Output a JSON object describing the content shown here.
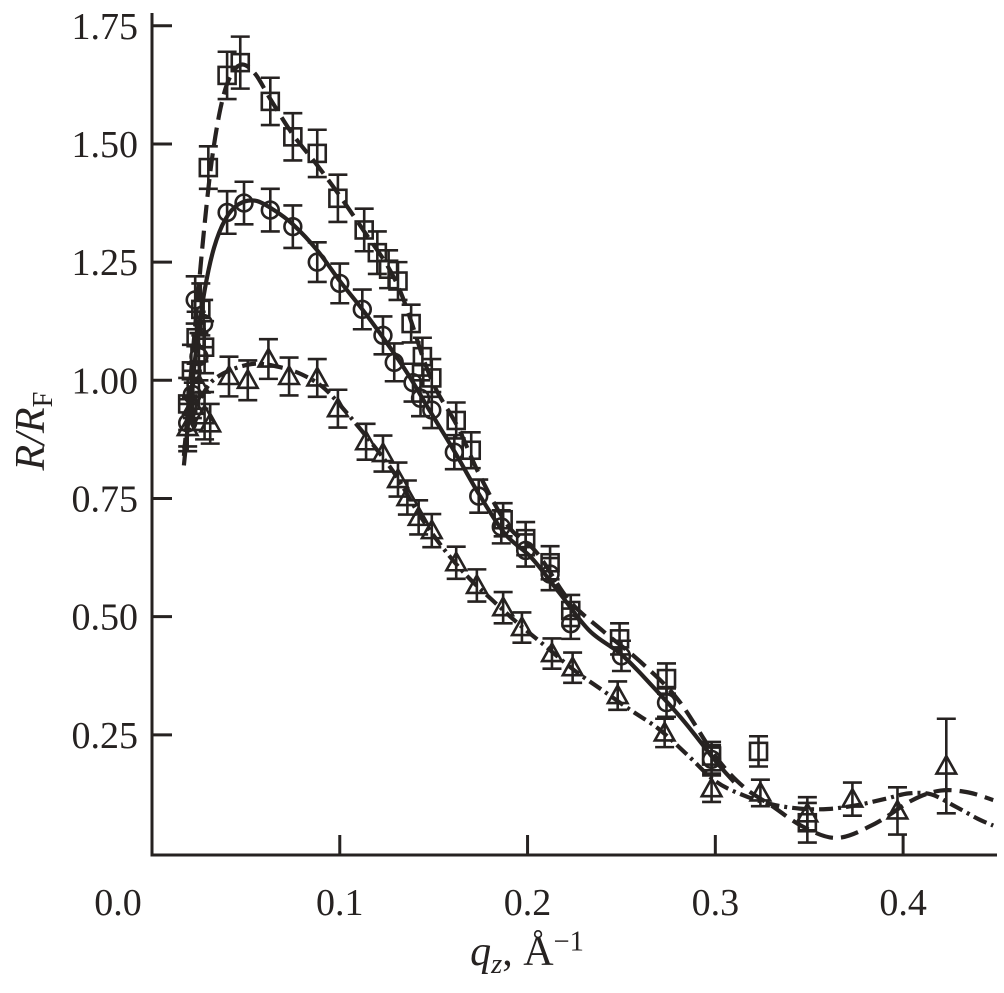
{
  "figure": {
    "description": "X-ray reflectivity curves normalized to Fresnel reflectivity, three data sets with error bars and model fit curves",
    "background": "#ffffff"
  },
  "chart_data": {
    "type": "scatter",
    "title": "",
    "grid": false,
    "legend": "none",
    "colors": {
      "ink": "#262221",
      "background": "#ffffff"
    },
    "x_axis": {
      "label_text": "qz, Å−1",
      "label_parts": {
        "var": "q",
        "sub": "z",
        "mid": ", Å",
        "sup": "−1"
      },
      "min": 0,
      "max": 0.45,
      "ticks": [
        {
          "value": 0.0,
          "label": "0.0",
          "tick": false,
          "label_x": 118
        },
        {
          "value": 0.1,
          "label": "0.1",
          "tick": true
        },
        {
          "value": 0.2,
          "label": "0.2",
          "tick": true
        },
        {
          "value": 0.3,
          "label": "0.3",
          "tick": true
        },
        {
          "value": 0.4,
          "label": "0.4",
          "tick": true
        }
      ]
    },
    "y_axis": {
      "label_text": "R/RF",
      "label_parts": {
        "main": "R/R",
        "sub": "F"
      },
      "min": 0,
      "max": 1.777,
      "ticks": [
        {
          "value": 0.25,
          "label": "0.25"
        },
        {
          "value": 0.5,
          "label": "0.50"
        },
        {
          "value": 0.75,
          "label": "0.75"
        },
        {
          "value": 1.0,
          "label": "1.00"
        },
        {
          "value": 1.25,
          "label": "1.25"
        },
        {
          "value": 1.5,
          "label": "1.50"
        },
        {
          "value": 1.75,
          "label": "1.75"
        }
      ]
    },
    "series": [
      {
        "name": "squares",
        "marker": "square",
        "line": "dashed",
        "points": [
          [
            0.019,
            0.95,
            0.055
          ],
          [
            0.021,
            1.02,
            0.055
          ],
          [
            0.0235,
            1.09,
            0.055
          ],
          [
            0.026,
            1.15,
            0.055
          ],
          [
            0.028,
            1.07,
            0.055
          ],
          [
            0.03,
            1.45,
            0.045
          ],
          [
            0.04,
            1.645,
            0.05
          ],
          [
            0.047,
            1.672,
            0.055
          ],
          [
            0.063,
            1.59,
            0.05
          ],
          [
            0.075,
            1.515,
            0.05
          ],
          [
            0.088,
            1.48,
            0.05
          ],
          [
            0.099,
            1.385,
            0.05
          ],
          [
            0.113,
            1.318,
            0.045
          ],
          [
            0.12,
            1.27,
            0.045
          ],
          [
            0.126,
            1.235,
            0.04
          ],
          [
            0.131,
            1.21,
            0.04
          ],
          [
            0.138,
            1.12,
            0.04
          ],
          [
            0.144,
            1.05,
            0.04
          ],
          [
            0.149,
            1.005,
            0.04
          ],
          [
            0.162,
            0.915,
            0.038
          ],
          [
            0.17,
            0.852,
            0.038
          ],
          [
            0.187,
            0.705,
            0.035
          ],
          [
            0.199,
            0.665,
            0.035
          ],
          [
            0.212,
            0.614,
            0.035
          ],
          [
            0.223,
            0.513,
            0.033
          ],
          [
            0.249,
            0.453,
            0.033
          ],
          [
            0.274,
            0.369,
            0.032
          ],
          [
            0.298,
            0.205,
            0.03
          ],
          [
            0.323,
            0.215,
            0.032
          ],
          [
            0.349,
            0.064,
            0.042
          ]
        ],
        "fit": [
          [
            0.017,
            0.84
          ],
          [
            0.02,
            0.98
          ],
          [
            0.024,
            1.16
          ],
          [
            0.028,
            1.33
          ],
          [
            0.032,
            1.47
          ],
          [
            0.037,
            1.585
          ],
          [
            0.042,
            1.645
          ],
          [
            0.048,
            1.668
          ],
          [
            0.055,
            1.648
          ],
          [
            0.063,
            1.595
          ],
          [
            0.075,
            1.52
          ],
          [
            0.088,
            1.455
          ],
          [
            0.1,
            1.39
          ],
          [
            0.113,
            1.315
          ],
          [
            0.125,
            1.245
          ],
          [
            0.132,
            1.19
          ],
          [
            0.138,
            1.125
          ],
          [
            0.145,
            1.04
          ],
          [
            0.152,
            0.975
          ],
          [
            0.163,
            0.9
          ],
          [
            0.175,
            0.795
          ],
          [
            0.19,
            0.69
          ],
          [
            0.205,
            0.635
          ],
          [
            0.222,
            0.535
          ],
          [
            0.24,
            0.47
          ],
          [
            0.26,
            0.405
          ],
          [
            0.28,
            0.325
          ],
          [
            0.3,
            0.205
          ],
          [
            0.315,
            0.14
          ],
          [
            0.33,
            0.1
          ],
          [
            0.347,
            0.055
          ],
          [
            0.365,
            0.032
          ],
          [
            0.385,
            0.062
          ],
          [
            0.405,
            0.112
          ],
          [
            0.42,
            0.132
          ],
          [
            0.435,
            0.128
          ],
          [
            0.448,
            0.112
          ]
        ]
      },
      {
        "name": "circles",
        "marker": "circle",
        "line": "solid",
        "points": [
          [
            0.019,
            0.91,
            0.05
          ],
          [
            0.0215,
            0.97,
            0.05
          ],
          [
            0.023,
            1.17,
            0.05
          ],
          [
            0.025,
            1.05,
            0.05
          ],
          [
            0.0275,
            1.12,
            0.05
          ],
          [
            0.04,
            1.355,
            0.045
          ],
          [
            0.049,
            1.375,
            0.045
          ],
          [
            0.063,
            1.36,
            0.045
          ],
          [
            0.075,
            1.325,
            0.045
          ],
          [
            0.088,
            1.25,
            0.042
          ],
          [
            0.1,
            1.205,
            0.042
          ],
          [
            0.112,
            1.15,
            0.042
          ],
          [
            0.123,
            1.095,
            0.04
          ],
          [
            0.129,
            1.038,
            0.04
          ],
          [
            0.139,
            0.995,
            0.04
          ],
          [
            0.143,
            0.962,
            0.038
          ],
          [
            0.149,
            0.937,
            0.038
          ],
          [
            0.161,
            0.848,
            0.036
          ],
          [
            0.174,
            0.755,
            0.035
          ],
          [
            0.186,
            0.69,
            0.035
          ],
          [
            0.199,
            0.64,
            0.034
          ],
          [
            0.212,
            0.59,
            0.034
          ],
          [
            0.223,
            0.485,
            0.032
          ],
          [
            0.25,
            0.417,
            0.032
          ],
          [
            0.274,
            0.318,
            0.03
          ],
          [
            0.298,
            0.198,
            0.03
          ]
        ],
        "fit": [
          [
            0.017,
            0.82
          ],
          [
            0.02,
            0.94
          ],
          [
            0.024,
            1.08
          ],
          [
            0.028,
            1.19
          ],
          [
            0.033,
            1.28
          ],
          [
            0.039,
            1.34
          ],
          [
            0.046,
            1.372
          ],
          [
            0.055,
            1.38
          ],
          [
            0.065,
            1.36
          ],
          [
            0.075,
            1.33
          ],
          [
            0.088,
            1.275
          ],
          [
            0.1,
            1.21
          ],
          [
            0.112,
            1.15
          ],
          [
            0.124,
            1.085
          ],
          [
            0.136,
            1.015
          ],
          [
            0.148,
            0.935
          ],
          [
            0.161,
            0.85
          ],
          [
            0.174,
            0.76
          ],
          [
            0.188,
            0.675
          ],
          [
            0.202,
            0.625
          ],
          [
            0.217,
            0.55
          ],
          [
            0.233,
            0.47
          ],
          [
            0.25,
            0.42
          ],
          [
            0.266,
            0.355
          ],
          [
            0.283,
            0.28
          ],
          [
            0.3,
            0.195
          ],
          [
            0.31,
            0.15
          ]
        ]
      },
      {
        "name": "triangles",
        "marker": "triangle",
        "line": "dashdot",
        "points": [
          [
            0.019,
            0.9,
            0.05
          ],
          [
            0.022,
            0.945,
            0.05
          ],
          [
            0.025,
            0.99,
            0.05
          ],
          [
            0.028,
            0.925,
            0.05
          ],
          [
            0.031,
            0.908,
            0.042
          ],
          [
            0.041,
            1.008,
            0.042
          ],
          [
            0.051,
            1.0,
            0.042
          ],
          [
            0.062,
            1.045,
            0.042
          ],
          [
            0.073,
            1.008,
            0.04
          ],
          [
            0.088,
            1.005,
            0.04
          ],
          [
            0.099,
            0.94,
            0.04
          ],
          [
            0.114,
            0.87,
            0.038
          ],
          [
            0.123,
            0.845,
            0.038
          ],
          [
            0.131,
            0.79,
            0.036
          ],
          [
            0.136,
            0.752,
            0.036
          ],
          [
            0.142,
            0.71,
            0.036
          ],
          [
            0.149,
            0.682,
            0.035
          ],
          [
            0.162,
            0.614,
            0.034
          ],
          [
            0.173,
            0.566,
            0.034
          ],
          [
            0.187,
            0.519,
            0.033
          ],
          [
            0.197,
            0.477,
            0.032
          ],
          [
            0.213,
            0.422,
            0.032
          ],
          [
            0.224,
            0.392,
            0.032
          ],
          [
            0.248,
            0.333,
            0.03
          ],
          [
            0.273,
            0.254,
            0.03
          ],
          [
            0.298,
            0.136,
            0.028
          ],
          [
            0.324,
            0.127,
            0.028
          ],
          [
            0.349,
            0.083,
            0.035
          ],
          [
            0.373,
            0.114,
            0.035
          ],
          [
            0.397,
            0.089,
            0.05
          ],
          [
            0.423,
            0.184,
            0.1
          ]
        ],
        "fit": [
          [
            0.017,
            0.855
          ],
          [
            0.021,
            0.915
          ],
          [
            0.026,
            0.962
          ],
          [
            0.032,
            0.998
          ],
          [
            0.042,
            1.022
          ],
          [
            0.055,
            1.035
          ],
          [
            0.068,
            1.028
          ],
          [
            0.08,
            1.012
          ],
          [
            0.092,
            0.982
          ],
          [
            0.105,
            0.925
          ],
          [
            0.118,
            0.862
          ],
          [
            0.13,
            0.798
          ],
          [
            0.142,
            0.718
          ],
          [
            0.155,
            0.645
          ],
          [
            0.168,
            0.585
          ],
          [
            0.182,
            0.532
          ],
          [
            0.196,
            0.482
          ],
          [
            0.21,
            0.436
          ],
          [
            0.225,
            0.386
          ],
          [
            0.24,
            0.344
          ],
          [
            0.255,
            0.302
          ],
          [
            0.27,
            0.262
          ],
          [
            0.285,
            0.208
          ],
          [
            0.3,
            0.152
          ],
          [
            0.315,
            0.122
          ],
          [
            0.33,
            0.103
          ],
          [
            0.345,
            0.094
          ],
          [
            0.36,
            0.093
          ],
          [
            0.375,
            0.101
          ],
          [
            0.39,
            0.114
          ],
          [
            0.403,
            0.126
          ],
          [
            0.415,
            0.124
          ],
          [
            0.428,
            0.098
          ],
          [
            0.44,
            0.072
          ],
          [
            0.448,
            0.058
          ]
        ]
      }
    ]
  }
}
